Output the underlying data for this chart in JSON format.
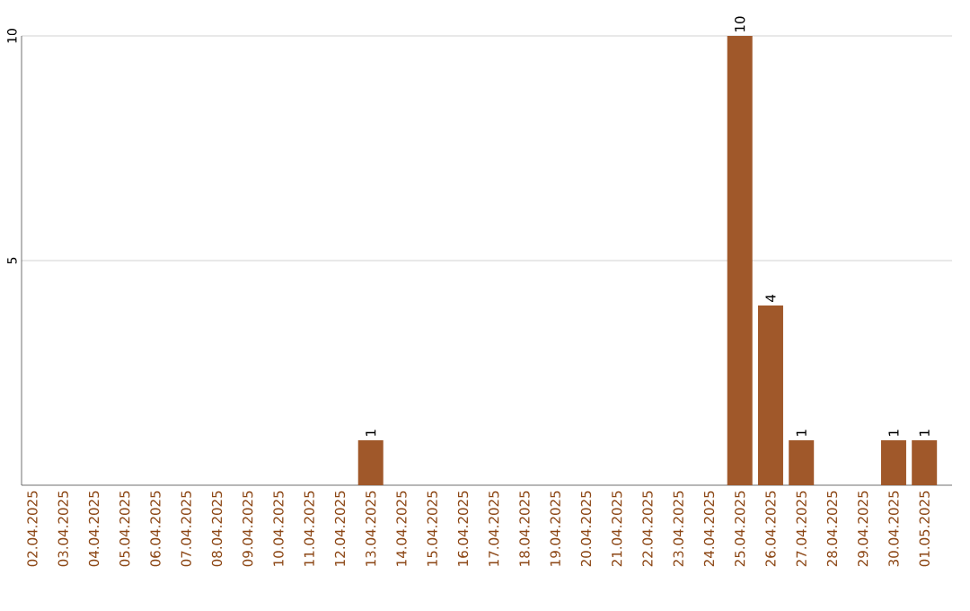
{
  "chart_data": {
    "type": "bar",
    "categories": [
      "02.04.2025",
      "03.04.2025",
      "04.04.2025",
      "05.04.2025",
      "06.04.2025",
      "07.04.2025",
      "08.04.2025",
      "09.04.2025",
      "10.04.2025",
      "11.04.2025",
      "12.04.2025",
      "13.04.2025",
      "14.04.2025",
      "15.04.2025",
      "16.04.2025",
      "17.04.2025",
      "18.04.2025",
      "19.04.2025",
      "20.04.2025",
      "21.04.2025",
      "22.04.2025",
      "23.04.2025",
      "24.04.2025",
      "25.04.2025",
      "26.04.2025",
      "27.04.2025",
      "28.04.2025",
      "29.04.2025",
      "30.04.2025",
      "01.05.2025"
    ],
    "values": [
      0,
      0,
      0,
      0,
      0,
      0,
      0,
      0,
      0,
      0,
      0,
      1,
      0,
      0,
      0,
      0,
      0,
      0,
      0,
      0,
      0,
      0,
      0,
      10,
      4,
      1,
      0,
      0,
      1,
      1
    ],
    "value_labels": [
      null,
      null,
      null,
      null,
      null,
      null,
      null,
      null,
      null,
      null,
      null,
      "1",
      null,
      null,
      null,
      null,
      null,
      null,
      null,
      null,
      null,
      null,
      null,
      "10",
      "4",
      "1",
      null,
      null,
      "1",
      "1"
    ],
    "color": "#a0582a",
    "ylim": [
      0,
      10
    ],
    "yticks": [
      5,
      10
    ],
    "grid": "y"
  }
}
